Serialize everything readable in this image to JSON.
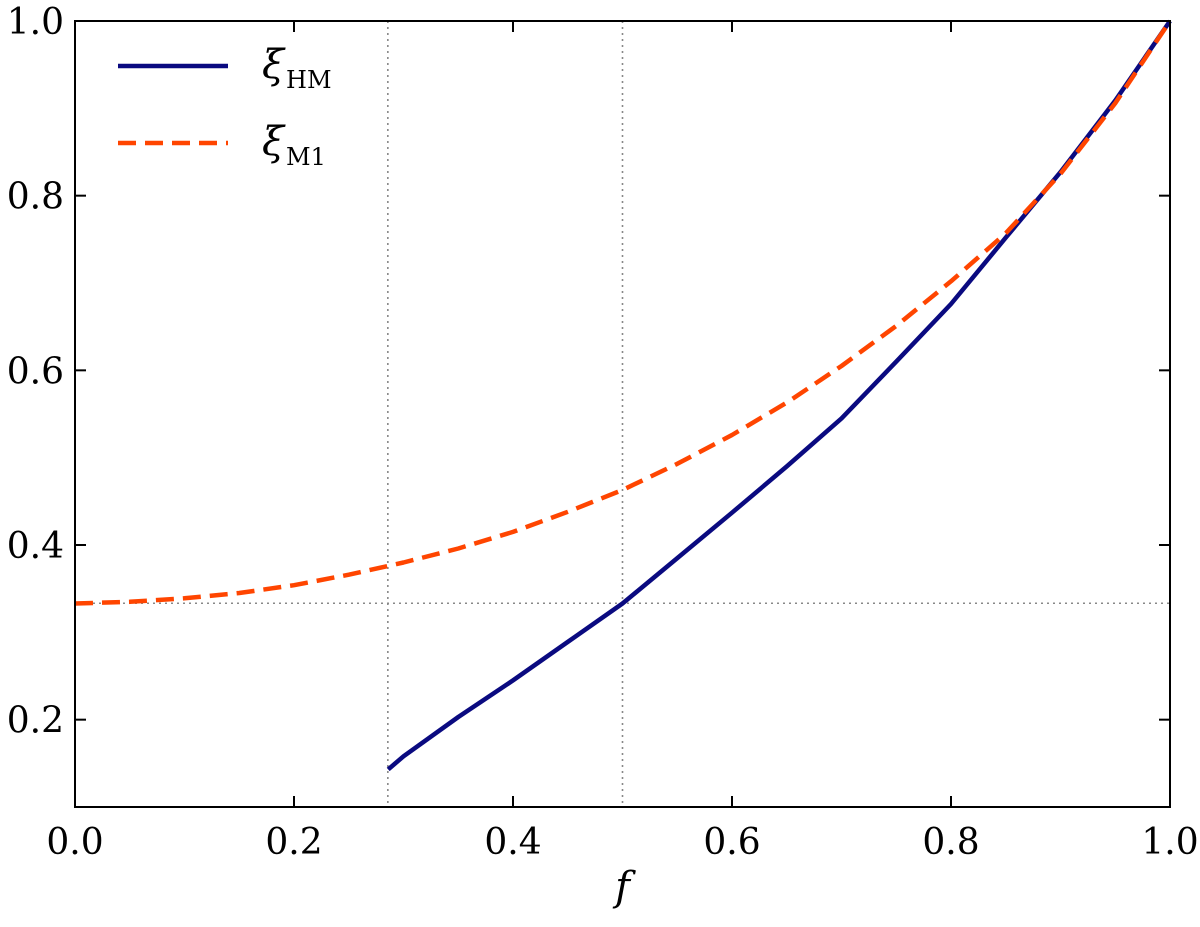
{
  "chart_data": {
    "type": "line",
    "title": "",
    "xlabel": "f",
    "ylabel": "",
    "xlim": [
      0.0,
      1.0
    ],
    "ylim": [
      0.1,
      1.0
    ],
    "xticks": [
      "0.0",
      "0.2",
      "0.4",
      "0.6",
      "0.8",
      "1.0"
    ],
    "yticks": [
      "0.2",
      "0.4",
      "0.6",
      "0.8",
      "1.0"
    ],
    "grid": false,
    "legend_position": "top-left",
    "reference_lines": {
      "vertical_x": [
        0.2857,
        0.5
      ],
      "horizontal_y": [
        0.3333
      ]
    },
    "series": [
      {
        "name": "ξ",
        "subscript": "HM",
        "color": "#0a0a80",
        "style": "solid",
        "x": [
          0.286,
          0.3,
          0.35,
          0.4,
          0.45,
          0.5,
          0.55,
          0.6,
          0.65,
          0.7,
          0.75,
          0.8,
          0.85,
          0.9,
          0.95,
          1.0
        ],
        "y": [
          0.143,
          0.158,
          0.203,
          0.245,
          0.289,
          0.333,
          0.385,
          0.437,
          0.49,
          0.545,
          0.61,
          0.676,
          0.752,
          0.827,
          0.909,
          1.0
        ]
      },
      {
        "name": "ξ",
        "subscript": "M1",
        "color": "#ff4500",
        "style": "dashed",
        "x": [
          0.0,
          0.05,
          0.1,
          0.15,
          0.2,
          0.25,
          0.3,
          0.35,
          0.4,
          0.45,
          0.5,
          0.55,
          0.6,
          0.65,
          0.7,
          0.75,
          0.8,
          0.85,
          0.9,
          0.95,
          1.0
        ],
        "y": [
          0.333,
          0.335,
          0.339,
          0.345,
          0.354,
          0.366,
          0.38,
          0.396,
          0.415,
          0.438,
          0.463,
          0.493,
          0.526,
          0.563,
          0.605,
          0.651,
          0.702,
          0.757,
          0.825,
          0.906,
          1.0
        ]
      }
    ]
  }
}
